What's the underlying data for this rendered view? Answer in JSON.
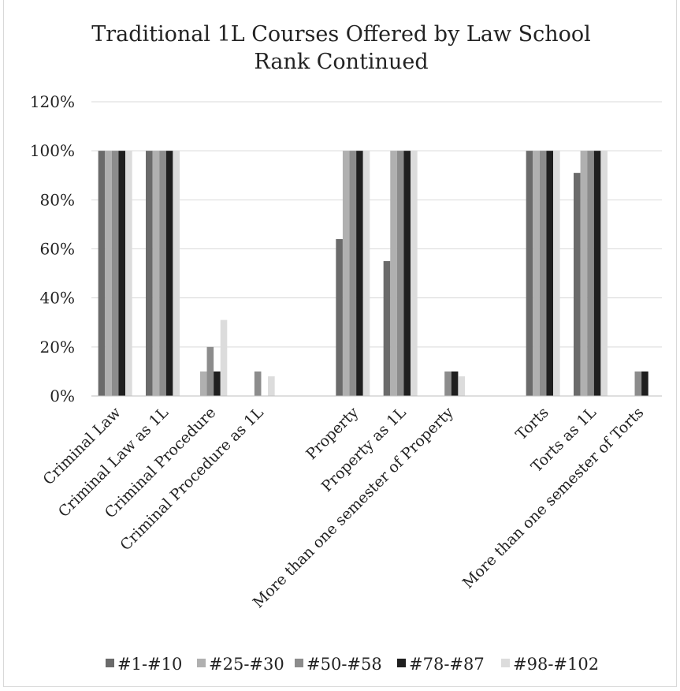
{
  "chart_data": {
    "type": "bar",
    "title_lines": [
      "Traditional 1L Courses Offered by Law School",
      "Rank Continued"
    ],
    "xlabel": "",
    "ylabel": "",
    "ylim": [
      0,
      120
    ],
    "yticks": [
      "0%",
      "20%",
      "40%",
      "60%",
      "80%",
      "100%",
      "120%"
    ],
    "ytick_values": [
      0,
      20,
      40,
      60,
      80,
      100,
      120
    ],
    "grid": true,
    "legend_position": "bottom",
    "categories": [
      "Criminal Law",
      "Criminal Law as 1L",
      "Criminal Procedure",
      "Criminal Procedure as 1L",
      "",
      "Property",
      "Property as 1L",
      "More than one semester of Property",
      "",
      "Torts",
      "Torts as 1L",
      "More than one semester of Torts"
    ],
    "series": [
      {
        "name": "#1-#10",
        "color": "#6b6b6b",
        "values": [
          100,
          100,
          0,
          0,
          null,
          64,
          55,
          0,
          null,
          100,
          91,
          0
        ]
      },
      {
        "name": "#25-#30",
        "color": "#b0b0b0",
        "values": [
          100,
          100,
          10,
          0,
          null,
          100,
          100,
          0,
          null,
          100,
          100,
          0
        ]
      },
      {
        "name": "#50-#58",
        "color": "#8c8c8c",
        "values": [
          100,
          100,
          20,
          10,
          null,
          100,
          100,
          10,
          null,
          100,
          100,
          10
        ]
      },
      {
        "name": "#78-#87",
        "color": "#1f1f1f",
        "values": [
          100,
          100,
          10,
          0,
          null,
          100,
          100,
          10,
          null,
          100,
          100,
          10
        ]
      },
      {
        "name": "#98-#102",
        "color": "#dcdcdc",
        "values": [
          100,
          100,
          31,
          8,
          null,
          100,
          100,
          8,
          null,
          100,
          100,
          0
        ]
      }
    ]
  }
}
